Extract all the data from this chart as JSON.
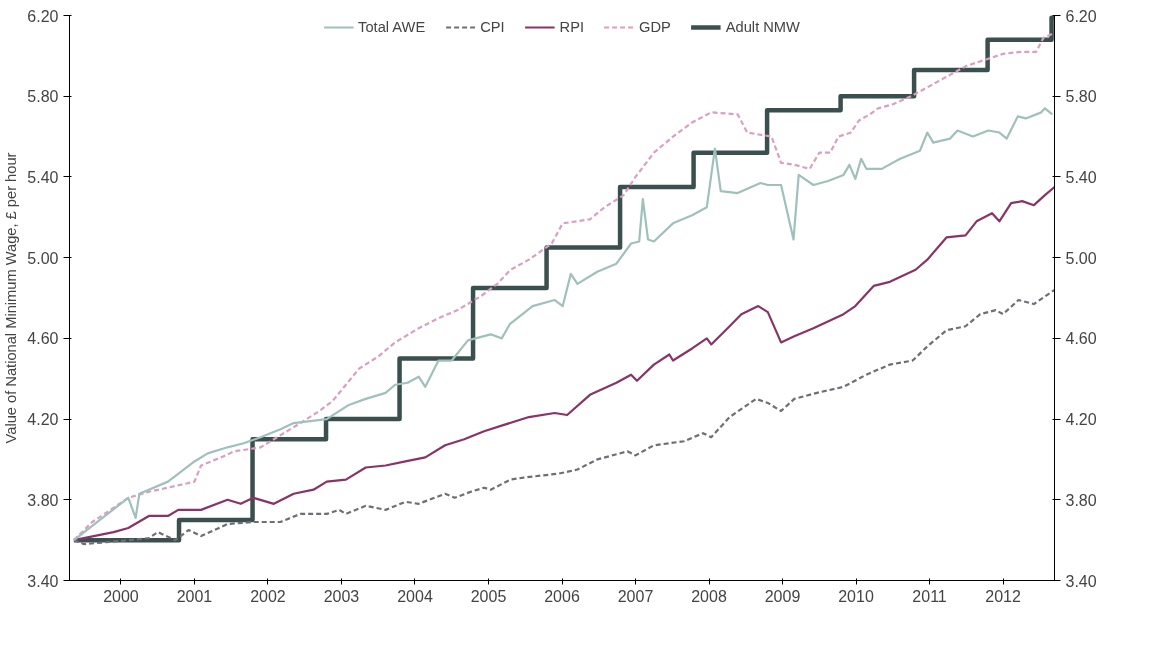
{
  "chart_data": {
    "type": "line",
    "ylabel": "Value of National Minimum Wage, £ per hour",
    "xlim": [
      1999.3,
      2012.7
    ],
    "xticks": [
      2000,
      2001,
      2002,
      2003,
      2004,
      2005,
      2006,
      2007,
      2008,
      2009,
      2010,
      2011,
      2012
    ],
    "ylim": [
      3.4,
      6.2
    ],
    "yticks": [
      {
        "value": 3.4,
        "label": "3.40"
      },
      {
        "value": 3.8,
        "label": "3.80"
      },
      {
        "value": 4.2,
        "label": "4.20"
      },
      {
        "value": 4.6,
        "label": "4.60"
      },
      {
        "value": 5.0,
        "label": "5.00"
      },
      {
        "value": 5.4,
        "label": "5.40"
      },
      {
        "value": 5.8,
        "label": "5.80"
      },
      {
        "value": 6.2,
        "label": "6.20"
      }
    ],
    "y2lim": [
      3.4,
      6.2
    ],
    "y2ticks": [
      {
        "value": 3.4,
        "label": "3.40"
      },
      {
        "value": 3.8,
        "label": "3.80"
      },
      {
        "value": 4.2,
        "label": "4.20"
      },
      {
        "value": 4.6,
        "label": "4.60"
      },
      {
        "value": 5.0,
        "label": "5.00"
      },
      {
        "value": 5.4,
        "label": "5.40"
      },
      {
        "value": 5.8,
        "label": "5.80"
      },
      {
        "value": 6.2,
        "label": "6.20"
      }
    ],
    "grid": false,
    "legend": "top",
    "marker": "none",
    "series": [
      {
        "name": "Total AWE",
        "color": "#9fc0bb",
        "line_style": "solid",
        "x": [
          1999.36,
          2000.1,
          2000.2,
          2000.25,
          2000.64,
          2001.0,
          2001.18,
          2001.45,
          2001.67,
          2001.9,
          2002.17,
          2002.35,
          2002.8,
          2003.1,
          2003.33,
          2003.6,
          2003.73,
          2003.9,
          2004.05,
          2004.14,
          2004.32,
          2004.5,
          2004.72,
          2005.03,
          2005.18,
          2005.29,
          2005.6,
          2005.9,
          2006.01,
          2006.12,
          2006.21,
          2006.48,
          2006.74,
          2006.94,
          2007.05,
          2007.1,
          2007.17,
          2007.25,
          2007.51,
          2007.77,
          2007.97,
          2008.08,
          2008.16,
          2008.39,
          2008.7,
          2008.8,
          2008.98,
          2009.15,
          2009.22,
          2009.42,
          2009.62,
          2009.83,
          2009.91,
          2009.99,
          2010.07,
          2010.14,
          2010.35,
          2010.6,
          2010.87,
          2010.97,
          2011.05,
          2011.28,
          2011.38,
          2011.59,
          2011.8,
          2011.95,
          2012.05,
          2012.2,
          2012.31,
          2012.52,
          2012.57,
          2012.67
        ],
        "values": [
          3.6,
          3.81,
          3.71,
          3.83,
          3.89,
          3.99,
          4.03,
          4.06,
          4.08,
          4.11,
          4.15,
          4.18,
          4.2,
          4.27,
          4.3,
          4.33,
          4.37,
          4.38,
          4.41,
          4.36,
          4.49,
          4.49,
          4.59,
          4.62,
          4.6,
          4.67,
          4.76,
          4.79,
          4.76,
          4.92,
          4.87,
          4.93,
          4.97,
          5.07,
          5.08,
          5.29,
          5.09,
          5.08,
          5.17,
          5.21,
          5.25,
          5.54,
          5.33,
          5.32,
          5.37,
          5.36,
          5.36,
          5.09,
          5.41,
          5.36,
          5.38,
          5.41,
          5.46,
          5.39,
          5.49,
          5.44,
          5.44,
          5.49,
          5.53,
          5.62,
          5.57,
          5.59,
          5.63,
          5.6,
          5.63,
          5.62,
          5.59,
          5.7,
          5.69,
          5.72,
          5.74,
          5.71
        ]
      },
      {
        "name": "CPI",
        "color": "#6e6e78",
        "line_style": "dashed",
        "x": [
          1999.36,
          1999.5,
          2000.1,
          2000.38,
          2000.5,
          2000.74,
          2000.92,
          2001.09,
          2001.45,
          2001.8,
          2002.17,
          2002.44,
          2002.8,
          2002.97,
          2003.06,
          2003.33,
          2003.6,
          2003.87,
          2004.05,
          2004.41,
          2004.54,
          2004.76,
          2004.94,
          2005.03,
          2005.3,
          2005.48,
          2005.96,
          2006.21,
          2006.48,
          2006.89,
          2007.0,
          2007.25,
          2007.66,
          2007.92,
          2008.03,
          2008.28,
          2008.64,
          2008.8,
          2008.98,
          2009.16,
          2009.47,
          2009.83,
          2010.14,
          2010.46,
          2010.77,
          2010.97,
          2011.23,
          2011.49,
          2011.69,
          2011.9,
          2012.0,
          2012.21,
          2012.42,
          2012.7
        ],
        "values": [
          3.6,
          3.58,
          3.6,
          3.61,
          3.64,
          3.6,
          3.65,
          3.62,
          3.68,
          3.69,
          3.69,
          3.73,
          3.73,
          3.75,
          3.73,
          3.77,
          3.75,
          3.79,
          3.78,
          3.83,
          3.81,
          3.84,
          3.86,
          3.85,
          3.9,
          3.91,
          3.93,
          3.95,
          4.0,
          4.04,
          4.02,
          4.07,
          4.09,
          4.13,
          4.11,
          4.21,
          4.3,
          4.28,
          4.24,
          4.3,
          4.33,
          4.36,
          4.42,
          4.47,
          4.49,
          4.56,
          4.64,
          4.66,
          4.72,
          4.74,
          4.72,
          4.79,
          4.77,
          4.84
        ]
      },
      {
        "name": "RPI",
        "color": "#8a3366",
        "line_style": "solid",
        "x": [
          1999.36,
          1999.9,
          2000.1,
          2000.38,
          2000.64,
          2000.78,
          2001.09,
          2001.45,
          2001.63,
          2001.8,
          2002.08,
          2002.35,
          2002.62,
          2002.8,
          2003.06,
          2003.33,
          2003.6,
          2003.87,
          2004.14,
          2004.41,
          2004.67,
          2004.94,
          2005.2,
          2005.55,
          2005.9,
          2006.07,
          2006.38,
          2006.74,
          2006.94,
          2007.02,
          2007.25,
          2007.46,
          2007.51,
          2007.77,
          2007.97,
          2008.03,
          2008.28,
          2008.44,
          2008.67,
          2008.8,
          2008.98,
          2009.16,
          2009.42,
          2009.83,
          2009.99,
          2010.24,
          2010.46,
          2010.81,
          2010.97,
          2011.23,
          2011.49,
          2011.64,
          2011.85,
          2011.95,
          2012.11,
          2012.26,
          2012.42,
          2012.57,
          2012.7
        ],
        "values": [
          3.6,
          3.64,
          3.66,
          3.72,
          3.72,
          3.75,
          3.75,
          3.8,
          3.78,
          3.81,
          3.78,
          3.83,
          3.85,
          3.89,
          3.9,
          3.96,
          3.97,
          3.99,
          4.01,
          4.07,
          4.1,
          4.14,
          4.17,
          4.21,
          4.23,
          4.22,
          4.32,
          4.38,
          4.42,
          4.39,
          4.47,
          4.52,
          4.49,
          4.55,
          4.6,
          4.57,
          4.66,
          4.72,
          4.76,
          4.73,
          4.58,
          4.61,
          4.65,
          4.72,
          4.76,
          4.86,
          4.88,
          4.94,
          4.99,
          5.1,
          5.11,
          5.18,
          5.22,
          5.18,
          5.27,
          5.28,
          5.26,
          5.31,
          5.35
        ]
      },
      {
        "name": "GDP",
        "color": "#d99fc4",
        "line_style": "dashed",
        "x": [
          1999.36,
          1999.61,
          1999.9,
          2000.1,
          2000.38,
          2000.64,
          2001.0,
          2001.09,
          2001.36,
          2001.54,
          2001.9,
          2002.17,
          2002.44,
          2002.7,
          2002.88,
          2003.06,
          2003.24,
          2003.5,
          2003.73,
          2004.05,
          2004.32,
          2004.58,
          2004.9,
          2005.12,
          2005.3,
          2005.55,
          2005.86,
          2006.01,
          2006.38,
          2006.58,
          2006.84,
          2007.0,
          2007.25,
          2007.51,
          2007.77,
          2008.03,
          2008.39,
          2008.52,
          2008.85,
          2008.98,
          2009.16,
          2009.37,
          2009.5,
          2009.65,
          2009.76,
          2009.93,
          2010.04,
          2010.19,
          2010.3,
          2010.5,
          2010.75,
          2011.0,
          2011.25,
          2011.5,
          2011.75,
          2012.0,
          2012.25,
          2012.45,
          2012.55,
          2012.68
        ],
        "values": [
          3.6,
          3.69,
          3.76,
          3.81,
          3.84,
          3.86,
          3.89,
          3.97,
          4.01,
          4.04,
          4.06,
          4.12,
          4.18,
          4.24,
          4.29,
          4.37,
          4.45,
          4.51,
          4.58,
          4.65,
          4.7,
          4.74,
          4.81,
          4.87,
          4.94,
          4.99,
          5.07,
          5.17,
          5.19,
          5.25,
          5.31,
          5.4,
          5.52,
          5.6,
          5.67,
          5.72,
          5.71,
          5.62,
          5.6,
          5.47,
          5.46,
          5.44,
          5.52,
          5.52,
          5.6,
          5.62,
          5.68,
          5.71,
          5.74,
          5.76,
          5.8,
          5.85,
          5.9,
          5.95,
          5.98,
          6.01,
          6.02,
          6.02,
          6.09,
          6.11
        ]
      },
      {
        "name": "Adult NMW",
        "color": "#3b4f4e",
        "type": "step",
        "line_style": "solid",
        "x": [
          1999.36,
          2000.79,
          2001.79,
          2002.79,
          2003.79,
          2004.79,
          2005.79,
          2006.79,
          2007.79,
          2008.79,
          2009.79,
          2010.79,
          2011.79,
          2012.66,
          2012.7
        ],
        "values": [
          3.6,
          3.7,
          4.1,
          4.2,
          4.5,
          4.85,
          5.05,
          5.35,
          5.52,
          5.73,
          5.8,
          5.93,
          6.08,
          6.19,
          6.19
        ]
      }
    ]
  }
}
